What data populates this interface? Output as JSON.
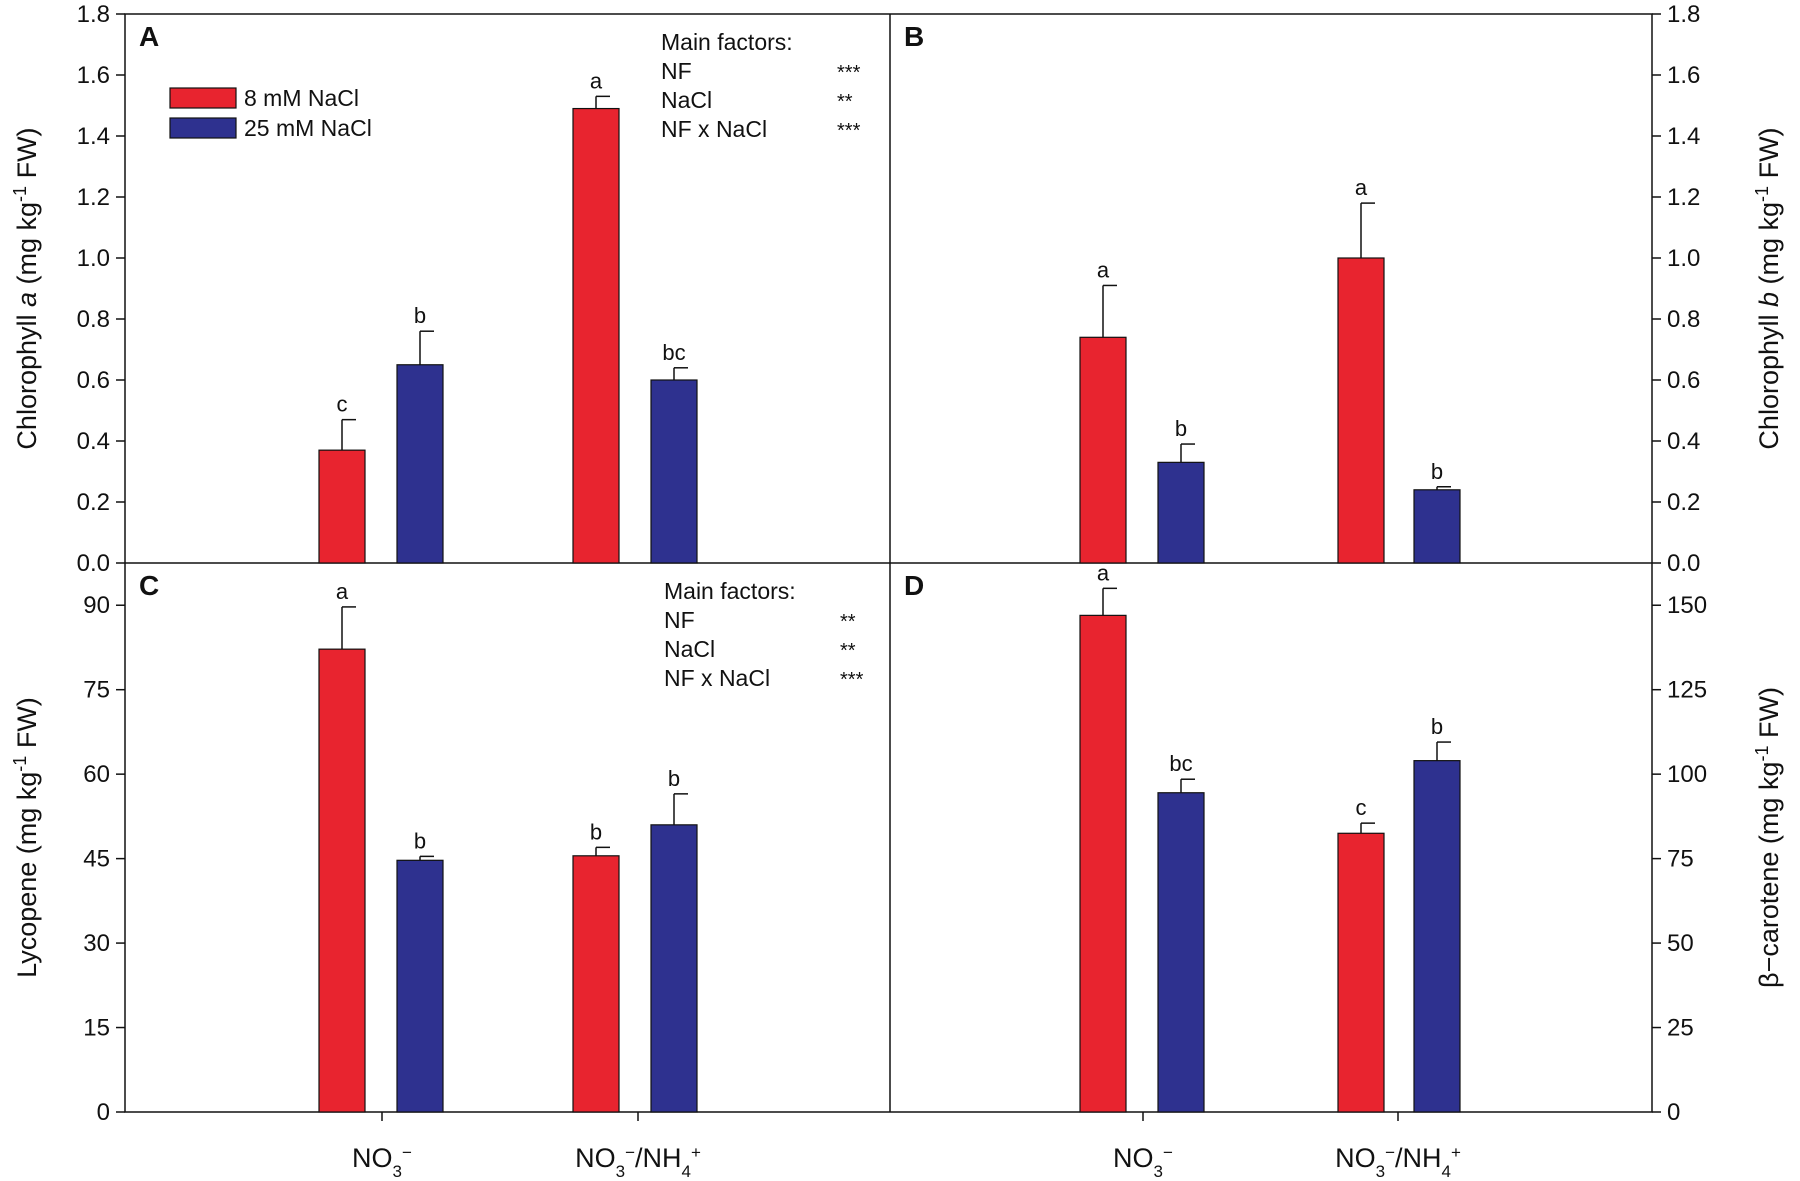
{
  "colors": {
    "series_1": "#e8242f",
    "series_2": "#2e318f",
    "axis": "#111111"
  },
  "legend": [
    {
      "label": "8 mM NaCl",
      "color": "#e8242f"
    },
    {
      "label": "25 mM NaCl",
      "color": "#2e318f"
    }
  ],
  "categories": [
    {
      "main": "NO3",
      "sup": "−",
      "tail": ""
    },
    {
      "main": "NO3",
      "sup": "−",
      "tail": "/NH4",
      "tail_sup": "+"
    }
  ],
  "chart_data": [
    {
      "panel": "A",
      "type": "bar",
      "ylabel": "Chlorophyll a (mg kg-1 FW)",
      "ylabel_parts": {
        "pre": "Chlorophyll ",
        "italic": "a",
        "mid": " (mg kg",
        "sup": "-1",
        "post": " FW)"
      },
      "ylim": [
        0,
        1.8
      ],
      "yticks": [
        "0.0",
        "0.2",
        "0.4",
        "0.6",
        "0.8",
        "1.0",
        "1.2",
        "1.4",
        "1.6",
        "1.8"
      ],
      "categories": [
        "NO3−",
        "NO3−/NH4+"
      ],
      "series": [
        {
          "name": "8 mM NaCl",
          "values": [
            0.37,
            1.49
          ],
          "errors": [
            0.1,
            0.04
          ],
          "letters": [
            "c",
            "a"
          ]
        },
        {
          "name": "25 mM NaCl",
          "values": [
            0.65,
            0.6
          ],
          "errors": [
            0.11,
            0.04
          ],
          "letters": [
            "b",
            "bc"
          ]
        }
      ],
      "main_factors": {
        "title": "Main factors:",
        "rows": [
          {
            "factor": "NF",
            "sig": "***"
          },
          {
            "factor": "NaCl",
            "sig": "**"
          },
          {
            "factor": "NF x NaCl",
            "sig": "***"
          }
        ]
      }
    },
    {
      "panel": "B",
      "type": "bar",
      "ylabel": "Chlorophyll b (mg kg-1 FW)",
      "ylabel_parts": {
        "pre": "Chlorophyll ",
        "italic": "b",
        "mid": " (mg kg",
        "sup": "-1",
        "post": " FW)"
      },
      "ylim": [
        0,
        1.8
      ],
      "yticks": [
        "0.0",
        "0.2",
        "0.4",
        "0.6",
        "0.8",
        "1.0",
        "1.2",
        "1.4",
        "1.6",
        "1.8"
      ],
      "categories": [
        "NO3−",
        "NO3−/NH4+"
      ],
      "series": [
        {
          "name": "8 mM NaCl",
          "values": [
            0.74,
            1.0
          ],
          "errors": [
            0.17,
            0.18
          ],
          "letters": [
            "a",
            "a"
          ]
        },
        {
          "name": "25 mM NaCl",
          "values": [
            0.33,
            0.24
          ],
          "errors": [
            0.06,
            0.01
          ],
          "letters": [
            "b",
            "b"
          ]
        }
      ]
    },
    {
      "panel": "C",
      "type": "bar",
      "ylabel": "Lycopene (mg kg-1 FW)",
      "ylabel_parts": {
        "pre": "Lycopene",
        "italic": "",
        "mid": " (mg kg",
        "sup": "-1",
        "post": " FW)"
      },
      "ylim": [
        0,
        97.5
      ],
      "yticks": [
        "0",
        "15",
        "30",
        "45",
        "60",
        "75",
        "90"
      ],
      "ytick_values": [
        0,
        15,
        30,
        45,
        60,
        75,
        90
      ],
      "categories": [
        "NO3−",
        "NO3−/NH4+"
      ],
      "series": [
        {
          "name": "8 mM NaCl",
          "values": [
            82.2,
            45.5
          ],
          "errors": [
            7.5,
            1.5
          ],
          "letters": [
            "a",
            "b"
          ]
        },
        {
          "name": "25 mM NaCl",
          "values": [
            44.7,
            51.0
          ],
          "errors": [
            0.7,
            5.5
          ],
          "letters": [
            "b",
            "b"
          ]
        }
      ],
      "main_factors": {
        "title": "Main factors:",
        "rows": [
          {
            "factor": "NF",
            "sig": "**"
          },
          {
            "factor": "NaCl",
            "sig": "**"
          },
          {
            "factor": "NF x NaCl",
            "sig": "***"
          }
        ]
      }
    },
    {
      "panel": "D",
      "type": "bar",
      "ylabel": "β-carotene (mg kg-1 FW)",
      "ylabel_parts": {
        "pre": "β−carotene",
        "italic": "",
        "mid": " (mg kg",
        "sup": "-1",
        "post": " FW)"
      },
      "ylim": [
        0,
        162.5
      ],
      "yticks": [
        "0",
        "25",
        "50",
        "75",
        "100",
        "125",
        "150"
      ],
      "ytick_values": [
        0,
        25,
        50,
        75,
        100,
        125,
        150
      ],
      "categories": [
        "NO3−",
        "NO3−/NH4+"
      ],
      "series": [
        {
          "name": "8 mM NaCl",
          "values": [
            147,
            82.5
          ],
          "errors": [
            8,
            3
          ],
          "letters": [
            "a",
            "c"
          ]
        },
        {
          "name": "25 mM NaCl",
          "values": [
            94.5,
            104
          ],
          "errors": [
            4,
            5.5
          ],
          "letters": [
            "bc",
            "b"
          ]
        }
      ]
    }
  ]
}
